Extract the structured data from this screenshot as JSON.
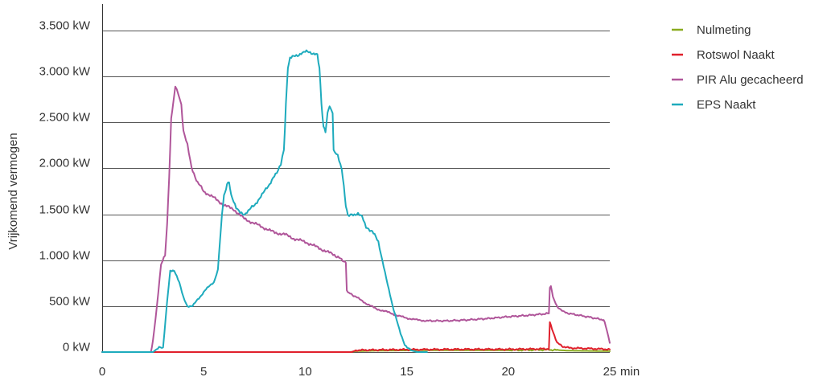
{
  "chart_data": {
    "type": "line",
    "title": "",
    "xlabel": "min",
    "ylabel": "Vrijkomend vermogen",
    "xlim": [
      0,
      25
    ],
    "ylim": [
      0,
      3500
    ],
    "grid": "horizontal",
    "legend_position": "top-right",
    "x_ticks": [
      "0",
      "5",
      "10",
      "15",
      "20",
      "25"
    ],
    "x_tick_values": [
      0,
      5,
      10,
      15,
      20,
      25
    ],
    "y_ticks": [
      "0 kW",
      "500 kW",
      "1.000 kW",
      "1.500 kW",
      "2.000 kW",
      "2.500 kW",
      "3.000 kW",
      "3.500 kW"
    ],
    "y_tick_values": [
      0,
      500,
      1000,
      1500,
      2000,
      2500,
      3000,
      3500
    ],
    "series": [
      {
        "name": "Nulmeting",
        "color": "#8aab1f",
        "points": [
          [
            0,
            0
          ],
          [
            12.2,
            0
          ],
          [
            12.5,
            10
          ],
          [
            13.5,
            15
          ],
          [
            16,
            20
          ],
          [
            20,
            20
          ],
          [
            22,
            25
          ],
          [
            23,
            15
          ],
          [
            25,
            10
          ]
        ]
      },
      {
        "name": "Rotswol Naakt",
        "color": "#e0202c",
        "points": [
          [
            0,
            0
          ],
          [
            2.3,
            0
          ],
          [
            5,
            0
          ],
          [
            10,
            0
          ],
          [
            12.3,
            0
          ],
          [
            12.5,
            20
          ],
          [
            14,
            25
          ],
          [
            16,
            28
          ],
          [
            18,
            30
          ],
          [
            20,
            30
          ],
          [
            22,
            35
          ],
          [
            22.05,
            320
          ],
          [
            22.15,
            260
          ],
          [
            22.4,
            100
          ],
          [
            22.7,
            60
          ],
          [
            23,
            45
          ],
          [
            25,
            30
          ]
        ]
      },
      {
        "name": "PIR Alu gecacheerd",
        "color": "#b0569a",
        "points": [
          [
            0,
            0
          ],
          [
            2.4,
            0
          ],
          [
            2.5,
            120
          ],
          [
            2.7,
            500
          ],
          [
            2.9,
            950
          ],
          [
            3.1,
            1050
          ],
          [
            3.2,
            1400
          ],
          [
            3.3,
            1900
          ],
          [
            3.4,
            2550
          ],
          [
            3.5,
            2700
          ],
          [
            3.6,
            2900
          ],
          [
            3.75,
            2820
          ],
          [
            3.9,
            2700
          ],
          [
            4.0,
            2400
          ],
          [
            4.2,
            2250
          ],
          [
            4.4,
            2000
          ],
          [
            4.7,
            1850
          ],
          [
            5.0,
            1750
          ],
          [
            5.5,
            1680
          ],
          [
            6.0,
            1600
          ],
          [
            6.5,
            1550
          ],
          [
            7.0,
            1450
          ],
          [
            7.5,
            1400
          ],
          [
            8.0,
            1350
          ],
          [
            8.5,
            1300
          ],
          [
            9.0,
            1280
          ],
          [
            9.5,
            1230
          ],
          [
            10.0,
            1200
          ],
          [
            10.5,
            1150
          ],
          [
            11.0,
            1100
          ],
          [
            11.5,
            1050
          ],
          [
            11.9,
            990
          ],
          [
            12.0,
            970
          ],
          [
            12.05,
            680
          ],
          [
            12.1,
            650
          ],
          [
            12.5,
            600
          ],
          [
            13.0,
            530
          ],
          [
            13.5,
            470
          ],
          [
            14.0,
            440
          ],
          [
            14.5,
            400
          ],
          [
            15.0,
            370
          ],
          [
            15.5,
            350
          ],
          [
            16.0,
            340
          ],
          [
            17.0,
            340
          ],
          [
            18.0,
            350
          ],
          [
            19.0,
            365
          ],
          [
            20.0,
            385
          ],
          [
            21.0,
            400
          ],
          [
            22.0,
            420
          ],
          [
            22.05,
            700
          ],
          [
            22.1,
            720
          ],
          [
            22.2,
            600
          ],
          [
            22.4,
            500
          ],
          [
            22.7,
            440
          ],
          [
            23.0,
            420
          ],
          [
            24.0,
            380
          ],
          [
            24.7,
            350
          ],
          [
            24.85,
            250
          ],
          [
            25.0,
            100
          ]
        ]
      },
      {
        "name": "EPS Naakt",
        "color": "#1eabbd",
        "points": [
          [
            0,
            0
          ],
          [
            2.5,
            0
          ],
          [
            2.8,
            50
          ],
          [
            3.0,
            40
          ],
          [
            3.2,
            550
          ],
          [
            3.35,
            880
          ],
          [
            3.55,
            880
          ],
          [
            3.8,
            760
          ],
          [
            4.0,
            600
          ],
          [
            4.2,
            500
          ],
          [
            4.45,
            500
          ],
          [
            4.7,
            570
          ],
          [
            5.0,
            650
          ],
          [
            5.3,
            730
          ],
          [
            5.5,
            760
          ],
          [
            5.7,
            900
          ],
          [
            5.8,
            1200
          ],
          [
            5.9,
            1500
          ],
          [
            6.0,
            1700
          ],
          [
            6.15,
            1820
          ],
          [
            6.25,
            1860
          ],
          [
            6.35,
            1700
          ],
          [
            6.6,
            1580
          ],
          [
            6.8,
            1530
          ],
          [
            7.0,
            1500
          ],
          [
            7.2,
            1540
          ],
          [
            7.5,
            1600
          ],
          [
            8.0,
            1750
          ],
          [
            8.3,
            1850
          ],
          [
            8.6,
            1950
          ],
          [
            8.8,
            2050
          ],
          [
            8.95,
            2200
          ],
          [
            9.05,
            2700
          ],
          [
            9.15,
            3100
          ],
          [
            9.25,
            3200
          ],
          [
            9.5,
            3220
          ],
          [
            9.8,
            3250
          ],
          [
            10.0,
            3270
          ],
          [
            10.3,
            3260
          ],
          [
            10.6,
            3230
          ],
          [
            10.7,
            3100
          ],
          [
            10.8,
            2700
          ],
          [
            10.9,
            2450
          ],
          [
            11.0,
            2400
          ],
          [
            11.1,
            2600
          ],
          [
            11.2,
            2680
          ],
          [
            11.35,
            2600
          ],
          [
            11.4,
            2200
          ],
          [
            11.6,
            2150
          ],
          [
            11.8,
            2000
          ],
          [
            11.9,
            1800
          ],
          [
            12.0,
            1600
          ],
          [
            12.1,
            1480
          ],
          [
            12.3,
            1500
          ],
          [
            12.6,
            1500
          ],
          [
            12.8,
            1470
          ],
          [
            13.0,
            1350
          ],
          [
            13.3,
            1320
          ],
          [
            13.6,
            1200
          ],
          [
            13.8,
            1000
          ],
          [
            14.0,
            800
          ],
          [
            14.3,
            500
          ],
          [
            14.5,
            350
          ],
          [
            14.7,
            200
          ],
          [
            14.9,
            80
          ],
          [
            15.2,
            20
          ],
          [
            15.5,
            0
          ],
          [
            16,
            0
          ]
        ]
      }
    ]
  }
}
